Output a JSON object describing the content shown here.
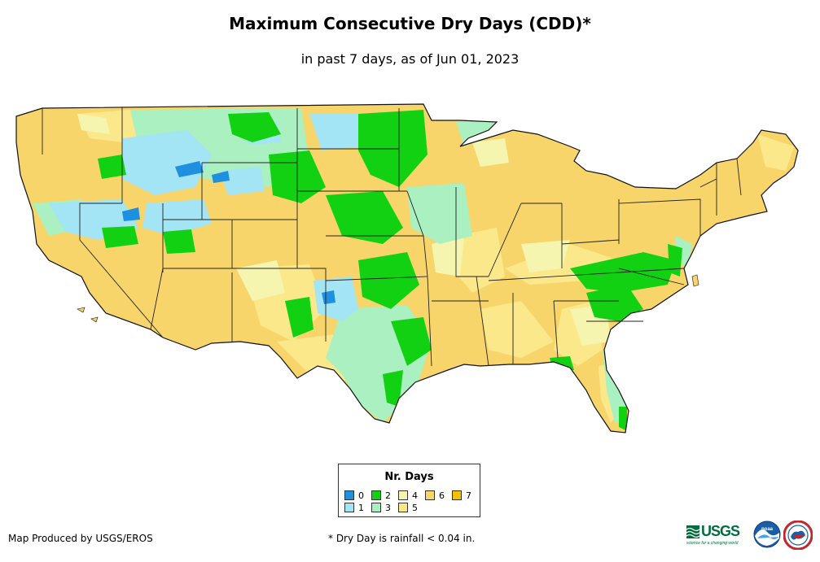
{
  "title": "Maximum Consecutive Dry Days (CDD)*",
  "subtitle": "in past 7 days, as of Jun 01, 2023",
  "legend": {
    "title": "Nr. Days",
    "items": [
      {
        "label": "0",
        "color": "#1f8fe0"
      },
      {
        "label": "1",
        "color": "#a3e4f5"
      },
      {
        "label": "2",
        "color": "#12d112"
      },
      {
        "label": "3",
        "color": "#aaf0c0"
      },
      {
        "label": "4",
        "color": "#f5f5b0"
      },
      {
        "label": "5",
        "color": "#fbe88a"
      },
      {
        "label": "6",
        "color": "#f7d56a"
      },
      {
        "label": "7",
        "color": "#f5c000"
      }
    ]
  },
  "footer": {
    "credit": "Map Produced by USGS/EROS",
    "note": "* Dry Day is rainfall < 0.04 in."
  },
  "logos": {
    "usgs": "USGS",
    "usgs_tagline": "science for a changing world"
  }
}
